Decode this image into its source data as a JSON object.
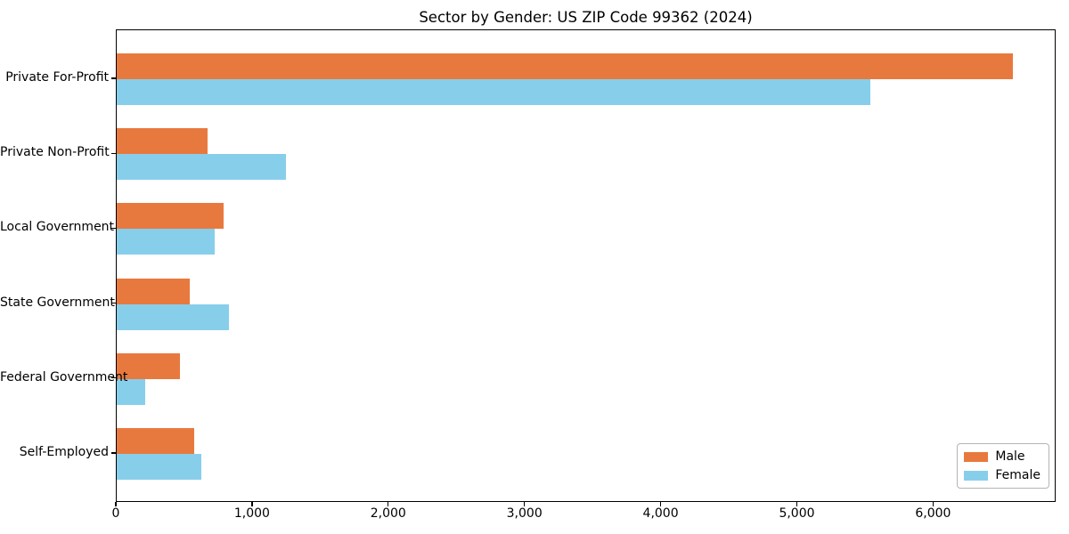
{
  "chart_data": {
    "type": "bar",
    "orientation": "horizontal",
    "title": "Sector by Gender: US ZIP Code 99362 (2024)",
    "categories": [
      "Private For-Profit",
      "Private Non-Profit",
      "Local Government",
      "State Government",
      "Federal Government",
      "Self-Employed"
    ],
    "series": [
      {
        "name": "Male",
        "color": "#e8793e",
        "values": [
          6580,
          670,
          785,
          535,
          465,
          570
        ]
      },
      {
        "name": "Female",
        "color": "#87ceeb",
        "values": [
          5530,
          1240,
          720,
          825,
          210,
          620
        ]
      }
    ],
    "xlabel": "",
    "ylabel": "",
    "xlim": [
      0,
      6900
    ],
    "x_ticks": [
      0,
      1000,
      2000,
      3000,
      4000,
      5000,
      6000
    ],
    "x_tick_labels": [
      "0",
      "1,000",
      "2,000",
      "3,000",
      "4,000",
      "5,000",
      "6,000"
    ],
    "grid": false,
    "legend": {
      "position": "lower right",
      "entries": [
        {
          "label": "Male",
          "color": "#e8793e"
        },
        {
          "label": "Female",
          "color": "#87ceeb"
        }
      ]
    }
  }
}
